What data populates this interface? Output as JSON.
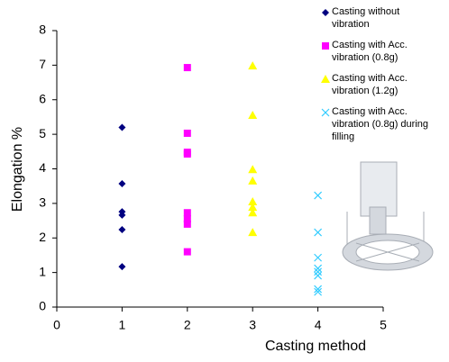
{
  "chart_data": {
    "type": "scatter",
    "x_label": "Casting method",
    "y_label": "Elongation %",
    "xlim": [
      0,
      5
    ],
    "xticks": [
      0,
      1,
      2,
      3,
      4,
      5
    ],
    "ylim": [
      0,
      8
    ],
    "yticks": [
      0,
      1,
      2,
      3,
      4,
      5,
      6,
      7,
      8
    ],
    "grid": false,
    "legend": "right",
    "series": [
      {
        "name": "Casting without vibration",
        "color": "#000080",
        "marker": "diamond",
        "x": [
          1,
          1,
          1,
          1,
          1,
          1
        ],
        "values": [
          5.2,
          3.57,
          2.76,
          2.66,
          2.24,
          1.17
        ]
      },
      {
        "name": "Casting with Acc. vibration (0.8g)",
        "color": "#ff00ff",
        "marker": "square",
        "x": [
          2,
          2,
          2,
          2,
          2,
          2,
          2,
          2
        ],
        "values": [
          6.93,
          5.03,
          4.48,
          4.43,
          2.73,
          2.55,
          2.4,
          1.6
        ]
      },
      {
        "name": "Casting with Acc. vibration (1.2g)",
        "color": "#ffff00",
        "marker": "triangle",
        "x": [
          3,
          3,
          3,
          3,
          3,
          3,
          3,
          3
        ],
        "values": [
          6.98,
          5.55,
          3.98,
          3.65,
          3.05,
          2.89,
          2.73,
          2.16
        ]
      },
      {
        "name": "Casting with Acc. vibration (0.8g) during filling",
        "color": "#33ccff",
        "marker": "cross",
        "x": [
          4,
          4,
          4,
          4,
          4,
          4,
          4,
          4
        ],
        "values": [
          3.23,
          2.16,
          1.43,
          1.12,
          1.02,
          0.91,
          0.52,
          0.44
        ]
      }
    ]
  }
}
